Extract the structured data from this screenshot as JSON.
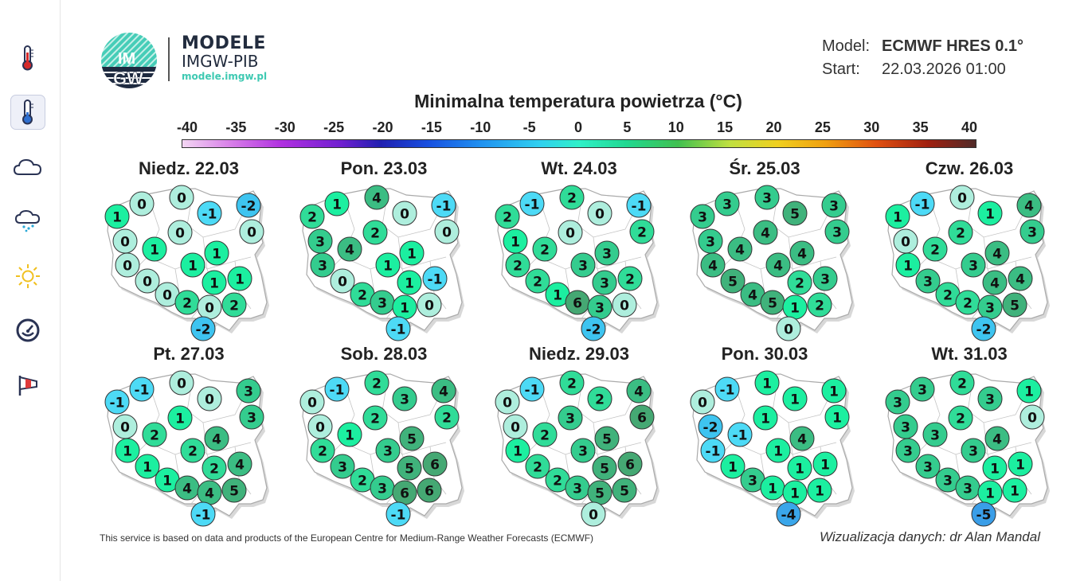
{
  "sidebar": {
    "items": [
      {
        "icon": "thermometer-icon",
        "active": false
      },
      {
        "icon": "thermometer-min-icon",
        "active": true
      },
      {
        "icon": "cloud-icon",
        "active": false
      },
      {
        "icon": "snow-cloud-icon",
        "active": false
      },
      {
        "icon": "sun-icon",
        "active": false
      },
      {
        "icon": "pressure-gauge-icon",
        "active": false
      },
      {
        "icon": "windsock-icon",
        "active": false
      }
    ]
  },
  "brand": {
    "logo_text": "IMGW",
    "title": "MODELE",
    "subtitle": "IMGW-PIB",
    "url": "modele.imgw.pl"
  },
  "meta": {
    "model_label": "Model:",
    "model_value": "ECMWF HRES 0.1°",
    "start_label": "Start:",
    "start_value": "22.03.2026 01:00"
  },
  "title": "Minimalna temperatura powietrza (°C)",
  "colorbar": {
    "ticks": [
      "-40",
      "-35",
      "-30",
      "-25",
      "-20",
      "-15",
      "-10",
      "-5",
      "0",
      "5",
      "10",
      "15",
      "20",
      "25",
      "30",
      "35",
      "40"
    ],
    "range": [
      -40,
      40
    ]
  },
  "value_colors": {
    "-5": "#3a9ee8",
    "-4": "#3aa6ea",
    "-3": "#3cb6ee",
    "-2": "#3ec4f0",
    "-1": "#4ddaf6",
    "0": "#aeeedd",
    "1": "#1cefa0",
    "2": "#30dc98",
    "3": "#34cc8e",
    "4": "#3bbd83",
    "5": "#40b27b",
    "6": "#45a873"
  },
  "maps": [
    {
      "title": "Niedz. 22.03",
      "values": [
        1,
        0,
        0,
        -1,
        -2,
        0,
        0,
        0,
        1,
        0,
        1,
        1,
        0,
        1,
        1,
        0,
        2,
        0,
        2,
        -2
      ]
    },
    {
      "title": "Pon. 23.03",
      "values": [
        2,
        1,
        4,
        0,
        -1,
        3,
        2,
        0,
        4,
        3,
        1,
        1,
        0,
        1,
        -1,
        2,
        3,
        1,
        0,
        -1
      ]
    },
    {
      "title": "Wt. 24.03",
      "values": [
        2,
        -1,
        2,
        0,
        -1,
        1,
        0,
        2,
        2,
        2,
        3,
        3,
        2,
        3,
        2,
        1,
        6,
        3,
        0,
        -2
      ]
    },
    {
      "title": "Śr. 25.03",
      "values": [
        3,
        3,
        3,
        5,
        3,
        3,
        4,
        3,
        4,
        4,
        4,
        4,
        5,
        2,
        3,
        4,
        5,
        1,
        2,
        0
      ]
    },
    {
      "title": "Czw. 26.03",
      "values": [
        1,
        -1,
        0,
        1,
        4,
        0,
        2,
        3,
        2,
        1,
        4,
        3,
        3,
        4,
        4,
        2,
        2,
        3,
        5,
        -2
      ]
    },
    {
      "title": "Pt. 27.03",
      "values": [
        -1,
        -1,
        0,
        0,
        3,
        0,
        1,
        3,
        2,
        1,
        4,
        2,
        1,
        2,
        4,
        1,
        4,
        4,
        5,
        -1
      ]
    },
    {
      "title": "Sob. 28.03",
      "values": [
        0,
        -1,
        2,
        3,
        4,
        0,
        2,
        2,
        1,
        2,
        5,
        3,
        3,
        5,
        6,
        2,
        3,
        6,
        6,
        -1
      ]
    },
    {
      "title": "Niedz. 29.03",
      "values": [
        0,
        -1,
        2,
        2,
        4,
        0,
        3,
        6,
        2,
        1,
        5,
        3,
        2,
        5,
        6,
        2,
        3,
        5,
        5,
        0
      ]
    },
    {
      "title": "Pon. 30.03",
      "values": [
        0,
        -1,
        1,
        1,
        1,
        -2,
        1,
        1,
        -1,
        -1,
        4,
        1,
        1,
        1,
        1,
        3,
        1,
        1,
        1,
        -4
      ]
    },
    {
      "title": "Wt. 31.03",
      "values": [
        3,
        3,
        2,
        3,
        1,
        3,
        2,
        0,
        3,
        3,
        4,
        3,
        3,
        1,
        1,
        3,
        3,
        1,
        1,
        -5
      ]
    }
  ],
  "footer": {
    "source": "This service is based on data and products of the European Centre for Medium-Range Weather Forecasts (ECMWF)",
    "credit": "Wizualizacja danych: dr Alan Mandal"
  }
}
